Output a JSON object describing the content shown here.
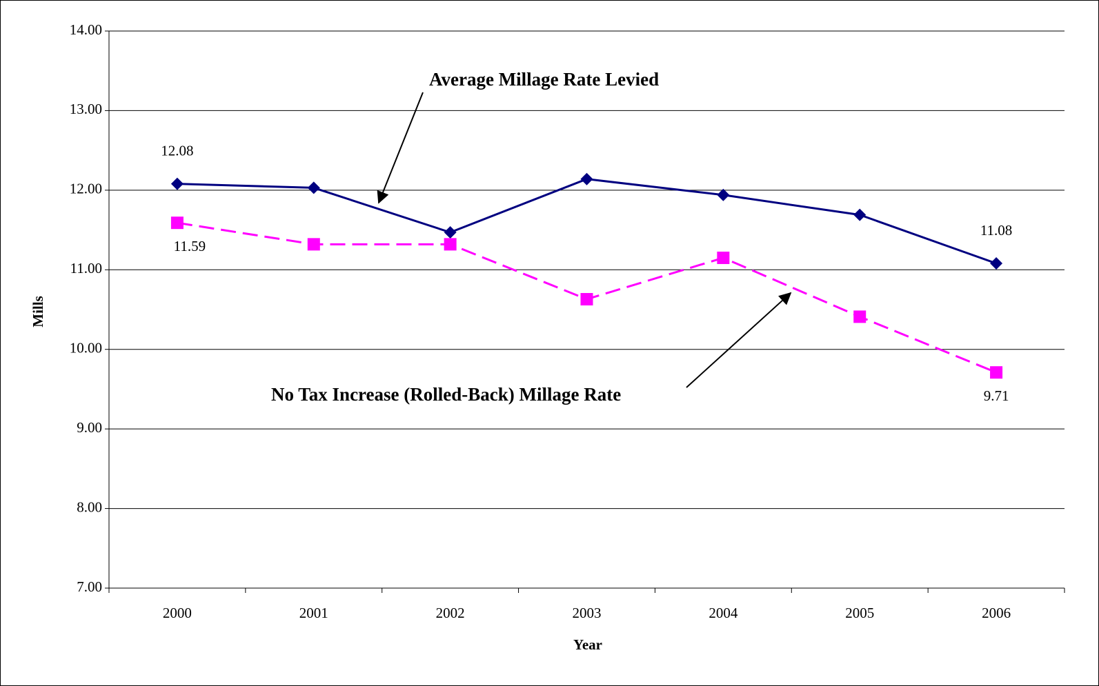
{
  "chart_data": {
    "type": "line",
    "x_label": "Year",
    "y_label": "Mills",
    "categories": [
      "2000",
      "2001",
      "2002",
      "2003",
      "2004",
      "2005",
      "2006"
    ],
    "series": [
      {
        "name": "Average Millage Rate Levied",
        "color": "#000080",
        "marker": "diamond",
        "dashed": false,
        "values": [
          12.08,
          12.03,
          11.47,
          12.14,
          11.94,
          11.69,
          11.08
        ],
        "value_labels": [
          "12.08",
          null,
          null,
          null,
          null,
          null,
          "11.08"
        ]
      },
      {
        "name": "No Tax Increase (Rolled-Back) Millage Rate",
        "color": "#ff00ff",
        "marker": "square",
        "dashed": true,
        "values": [
          11.59,
          11.32,
          11.32,
          10.63,
          11.15,
          10.41,
          9.71
        ],
        "value_labels": [
          "11.59",
          null,
          null,
          null,
          null,
          null,
          "9.71"
        ]
      }
    ],
    "ylim": [
      7,
      14
    ],
    "yticks": [
      {
        "value": 7,
        "label": "7.00"
      },
      {
        "value": 8,
        "label": "8.00"
      },
      {
        "value": 9,
        "label": "9.00"
      },
      {
        "value": 10,
        "label": "10.00"
      },
      {
        "value": 11,
        "label": "11.00"
      },
      {
        "value": 12,
        "label": "12.00"
      },
      {
        "value": 13,
        "label": "13.00"
      },
      {
        "value": 14,
        "label": "14.00"
      }
    ],
    "grid": true
  }
}
